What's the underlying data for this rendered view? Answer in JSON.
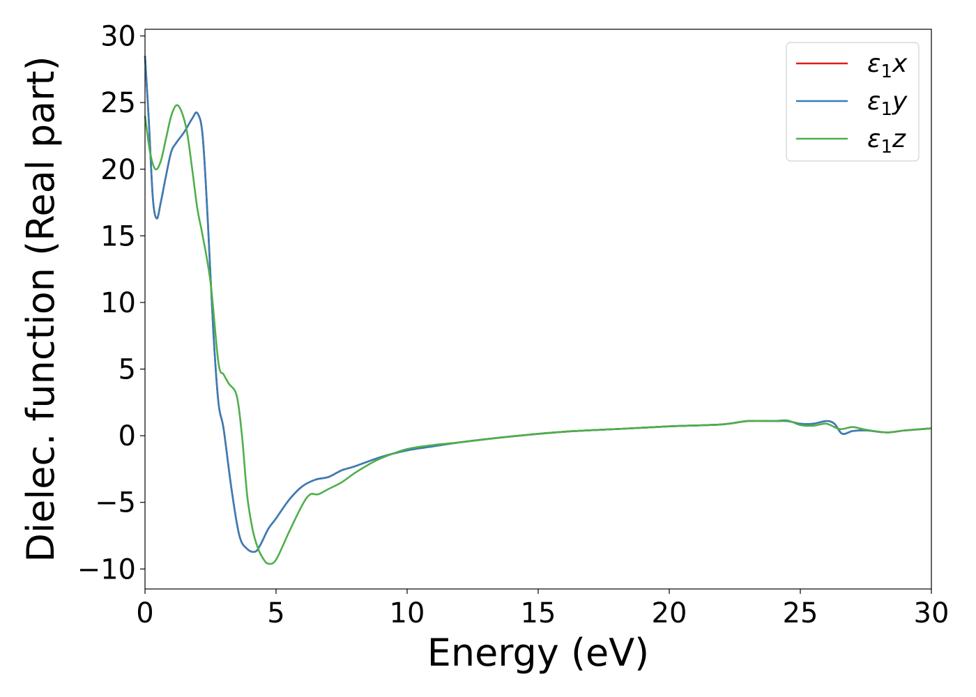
{
  "chart_data": {
    "type": "line",
    "xlabel": "Energy (eV)",
    "ylabel": "Dielec. function (Real part)",
    "xlim": [
      0,
      30
    ],
    "ylim": [
      -11.5,
      30.5
    ],
    "xticks": [
      0,
      5,
      10,
      15,
      20,
      25,
      30
    ],
    "xtick_labels": [
      "0",
      "5",
      "10",
      "15",
      "20",
      "25",
      "30"
    ],
    "yticks": [
      -10,
      -5,
      0,
      5,
      10,
      15,
      20,
      25,
      30
    ],
    "ytick_labels": [
      "−10",
      "−5",
      "0",
      "5",
      "10",
      "15",
      "20",
      "25",
      "30"
    ],
    "grid": false,
    "legend_position": "top-right",
    "series": [
      {
        "name": "ε1x",
        "symbol": "ε",
        "subscript": "1",
        "suffix": "x",
        "color": "#e41a1c",
        "x": [
          0,
          0.15,
          0.3,
          0.45,
          0.6,
          0.8,
          1.0,
          1.2,
          1.5,
          1.8,
          2.0,
          2.2,
          2.4,
          2.6,
          2.8,
          3.0,
          3.3,
          3.6,
          3.9,
          4.2,
          4.4,
          4.7,
          5.0,
          5.5,
          6.0,
          6.5,
          7.0,
          7.5,
          8.0,
          9.0,
          10.0,
          11.0,
          12.0,
          14.0,
          16.0,
          18.0,
          20.0,
          22.0,
          23.0,
          24.0,
          24.5,
          25.0,
          25.5,
          26.0,
          26.3,
          26.6,
          27.0,
          27.5,
          28.3,
          29.0,
          30.0
        ],
        "y": [
          28.5,
          23.5,
          17.8,
          16.3,
          17.5,
          19.5,
          21.3,
          22.0,
          22.8,
          23.8,
          24.2,
          22.5,
          16.0,
          8.0,
          2.5,
          0.5,
          -4.0,
          -7.5,
          -8.5,
          -8.7,
          -8.2,
          -7.0,
          -6.2,
          -4.8,
          -3.8,
          -3.3,
          -3.1,
          -2.6,
          -2.3,
          -1.6,
          -1.1,
          -0.8,
          -0.5,
          -0.05,
          0.3,
          0.5,
          0.7,
          0.85,
          1.1,
          1.1,
          1.1,
          0.9,
          0.9,
          1.1,
          0.9,
          0.15,
          0.35,
          0.4,
          0.25,
          0.4,
          0.55
        ]
      },
      {
        "name": "ε1y",
        "symbol": "ε",
        "subscript": "1",
        "suffix": "y",
        "color": "#377eb8",
        "x": [
          0,
          0.15,
          0.3,
          0.45,
          0.6,
          0.8,
          1.0,
          1.2,
          1.5,
          1.8,
          2.0,
          2.2,
          2.4,
          2.6,
          2.8,
          3.0,
          3.3,
          3.6,
          3.9,
          4.2,
          4.4,
          4.7,
          5.0,
          5.5,
          6.0,
          6.5,
          7.0,
          7.5,
          8.0,
          9.0,
          10.0,
          11.0,
          12.0,
          14.0,
          16.0,
          18.0,
          20.0,
          22.0,
          23.0,
          24.0,
          24.5,
          25.0,
          25.5,
          26.0,
          26.3,
          26.6,
          27.0,
          27.5,
          28.3,
          29.0,
          30.0
        ],
        "y": [
          28.5,
          23.5,
          17.8,
          16.3,
          17.5,
          19.5,
          21.3,
          22.0,
          22.8,
          23.8,
          24.2,
          22.5,
          16.0,
          8.0,
          2.5,
          0.5,
          -4.0,
          -7.5,
          -8.5,
          -8.7,
          -8.2,
          -7.0,
          -6.2,
          -4.8,
          -3.8,
          -3.3,
          -3.1,
          -2.6,
          -2.3,
          -1.6,
          -1.1,
          -0.8,
          -0.5,
          -0.05,
          0.3,
          0.5,
          0.7,
          0.85,
          1.1,
          1.1,
          1.1,
          0.9,
          0.9,
          1.1,
          0.9,
          0.15,
          0.35,
          0.4,
          0.25,
          0.4,
          0.55
        ]
      },
      {
        "name": "ε1z",
        "symbol": "ε",
        "subscript": "1",
        "suffix": "z",
        "color": "#4daf4a",
        "x": [
          0,
          0.2,
          0.4,
          0.6,
          0.8,
          1.0,
          1.2,
          1.4,
          1.6,
          1.8,
          2.0,
          2.2,
          2.5,
          2.8,
          3.0,
          3.2,
          3.5,
          3.7,
          3.9,
          4.1,
          4.3,
          4.5,
          4.7,
          5.0,
          5.5,
          6.0,
          6.3,
          6.6,
          7.0,
          7.5,
          8.0,
          8.5,
          9.0,
          10.0,
          11.0,
          12.0,
          14.0,
          16.0,
          18.0,
          20.0,
          22.0,
          23.0,
          24.0,
          24.5,
          25.0,
          25.5,
          26.0,
          26.5,
          27.0,
          27.5,
          28.3,
          29.0,
          30.0
        ],
        "y": [
          24.0,
          21.2,
          20.0,
          20.6,
          22.3,
          24.0,
          24.8,
          24.3,
          22.8,
          20.0,
          17.0,
          15.0,
          11.5,
          5.5,
          4.6,
          3.9,
          3.0,
          0.0,
          -4.5,
          -7.0,
          -8.4,
          -9.2,
          -9.6,
          -9.3,
          -7.2,
          -5.2,
          -4.4,
          -4.4,
          -4.0,
          -3.5,
          -2.8,
          -2.2,
          -1.7,
          -1.0,
          -0.7,
          -0.5,
          -0.05,
          0.3,
          0.5,
          0.7,
          0.85,
          1.1,
          1.1,
          1.15,
          0.8,
          0.75,
          0.9,
          0.5,
          0.65,
          0.45,
          0.25,
          0.4,
          0.55
        ]
      }
    ]
  }
}
